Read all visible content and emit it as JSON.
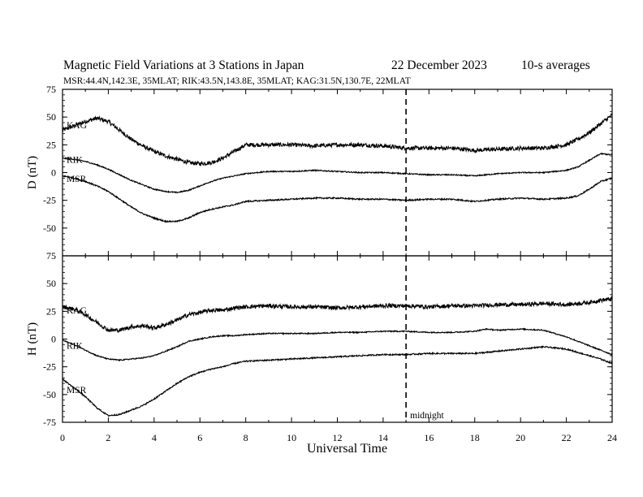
{
  "header": {
    "title": "Magnetic Field Variations at 3 Stations in Japan",
    "date": "22 December 2023",
    "averaging": "10-s averages",
    "stations": "MSR:44.4N,142.3E, 35MLAT;  RIK:43.5N,143.8E, 35MLAT;  KAG:31.5N,130.7E, 22MLAT"
  },
  "chart_data": [
    {
      "type": "line",
      "ylabel": "D (nT)",
      "ylim": [
        -75,
        75
      ],
      "yticks": [
        -75,
        -50,
        -25,
        0,
        25,
        50,
        75
      ],
      "xlim": [
        0,
        24
      ],
      "series": [
        {
          "name": "KAG",
          "x": [
            0,
            0.5,
            1,
            1.5,
            2,
            2.5,
            3,
            3.5,
            4,
            4.5,
            5,
            5.5,
            6,
            6.5,
            7,
            7.5,
            8,
            8.5,
            9,
            10,
            11,
            12,
            13,
            14,
            15,
            16,
            17,
            18,
            19,
            20,
            21,
            22,
            22.5,
            23,
            23.5,
            24
          ],
          "y": [
            38,
            42,
            46,
            49,
            46,
            38,
            30,
            24,
            19,
            15,
            12,
            9,
            8,
            9,
            13,
            19,
            25,
            25,
            25,
            25,
            24,
            25,
            25,
            24,
            22,
            22,
            22,
            20,
            21,
            22,
            22,
            25,
            30,
            36,
            44,
            52
          ]
        },
        {
          "name": "RIK",
          "x": [
            0,
            0.5,
            1,
            1.5,
            2,
            2.5,
            3,
            3.5,
            4,
            4.5,
            5,
            5.5,
            6,
            6.5,
            7,
            7.5,
            8,
            9,
            10,
            11,
            12,
            13,
            14,
            15,
            16,
            17,
            18,
            19,
            20,
            21,
            22,
            22.5,
            23,
            23.5,
            24
          ],
          "y": [
            13,
            12,
            10,
            7,
            3,
            -2,
            -7,
            -11,
            -15,
            -17,
            -18,
            -16,
            -12,
            -8,
            -5,
            -3,
            -1,
            1,
            1,
            2,
            1,
            0,
            0,
            -1,
            -2,
            -2,
            -3,
            -1,
            0,
            0,
            2,
            5,
            11,
            17,
            16
          ]
        },
        {
          "name": "MSR",
          "x": [
            0,
            0.5,
            1,
            1.5,
            2,
            2.5,
            3,
            3.5,
            4,
            4.5,
            5,
            5.5,
            6,
            6.5,
            7,
            7.5,
            8,
            9,
            10,
            11,
            12,
            13,
            14,
            15,
            16,
            17,
            18,
            19,
            20,
            21,
            22,
            22.5,
            23,
            23.5,
            24
          ],
          "y": [
            -3,
            -5,
            -8,
            -12,
            -17,
            -24,
            -31,
            -37,
            -41,
            -44,
            -44,
            -41,
            -36,
            -33,
            -31,
            -29,
            -26,
            -25,
            -24,
            -23,
            -23,
            -24,
            -24,
            -25,
            -24,
            -24,
            -26,
            -24,
            -23,
            -24,
            -23,
            -21,
            -15,
            -8,
            -5
          ]
        }
      ]
    },
    {
      "type": "line",
      "ylabel": "H (nT)",
      "xlabel": "Universal Time",
      "ylim": [
        -75,
        75
      ],
      "yticks": [
        -75,
        -50,
        -25,
        0,
        25,
        50,
        75
      ],
      "xlim": [
        0,
        24
      ],
      "xticks": [
        0,
        2,
        4,
        6,
        8,
        10,
        12,
        14,
        16,
        18,
        20,
        22,
        24
      ],
      "series": [
        {
          "name": "KAG",
          "x": [
            0,
            0.5,
            1,
            1.5,
            2,
            2.5,
            3,
            3.5,
            4,
            4.5,
            5,
            5.5,
            6,
            6.5,
            7,
            7.5,
            8,
            9,
            10,
            11,
            12,
            13,
            14,
            15,
            16,
            17,
            18,
            19,
            20,
            21,
            22,
            23,
            23.5,
            24
          ],
          "y": [
            29,
            27,
            22,
            15,
            8,
            8,
            11,
            12,
            10,
            13,
            17,
            22,
            24,
            26,
            26,
            28,
            29,
            30,
            29,
            29,
            28,
            29,
            30,
            30,
            29,
            30,
            30,
            31,
            31,
            32,
            31,
            33,
            35,
            36
          ]
        },
        {
          "name": "RIK",
          "x": [
            0,
            0.5,
            1,
            1.5,
            2,
            2.5,
            3,
            3.5,
            4,
            4.5,
            5,
            5.5,
            6,
            6.5,
            7,
            7.5,
            8,
            9,
            10,
            11,
            12,
            13,
            14,
            15,
            16,
            17,
            18,
            18.5,
            19,
            20,
            21,
            22,
            22.5,
            23,
            23.5,
            24
          ],
          "y": [
            -1,
            -5,
            -10,
            -15,
            -18,
            -19,
            -18,
            -17,
            -15,
            -11,
            -7,
            -2,
            0,
            2,
            3,
            3,
            4,
            5,
            5,
            5,
            6,
            6,
            7,
            7,
            6,
            6,
            7,
            9,
            8,
            9,
            8,
            2,
            -2,
            -6,
            -10,
            -14
          ]
        },
        {
          "name": "MSR",
          "x": [
            0,
            0.5,
            1,
            1.5,
            2,
            2.5,
            3,
            3.5,
            4,
            4.5,
            5,
            5.5,
            6,
            6.5,
            7,
            7.5,
            8,
            9,
            10,
            11,
            12,
            13,
            14,
            15,
            16,
            17,
            18,
            19,
            20,
            21,
            22,
            22.5,
            23,
            23.5,
            24
          ],
          "y": [
            -36,
            -44,
            -52,
            -62,
            -69,
            -68,
            -64,
            -60,
            -54,
            -47,
            -40,
            -34,
            -30,
            -27,
            -25,
            -22,
            -20,
            -19,
            -18,
            -17,
            -16,
            -15,
            -14,
            -14,
            -13,
            -13,
            -13,
            -11,
            -9,
            -7,
            -9,
            -12,
            -15,
            -18,
            -22
          ]
        }
      ]
    }
  ],
  "annotation": {
    "x": 15,
    "label": "midnight"
  }
}
